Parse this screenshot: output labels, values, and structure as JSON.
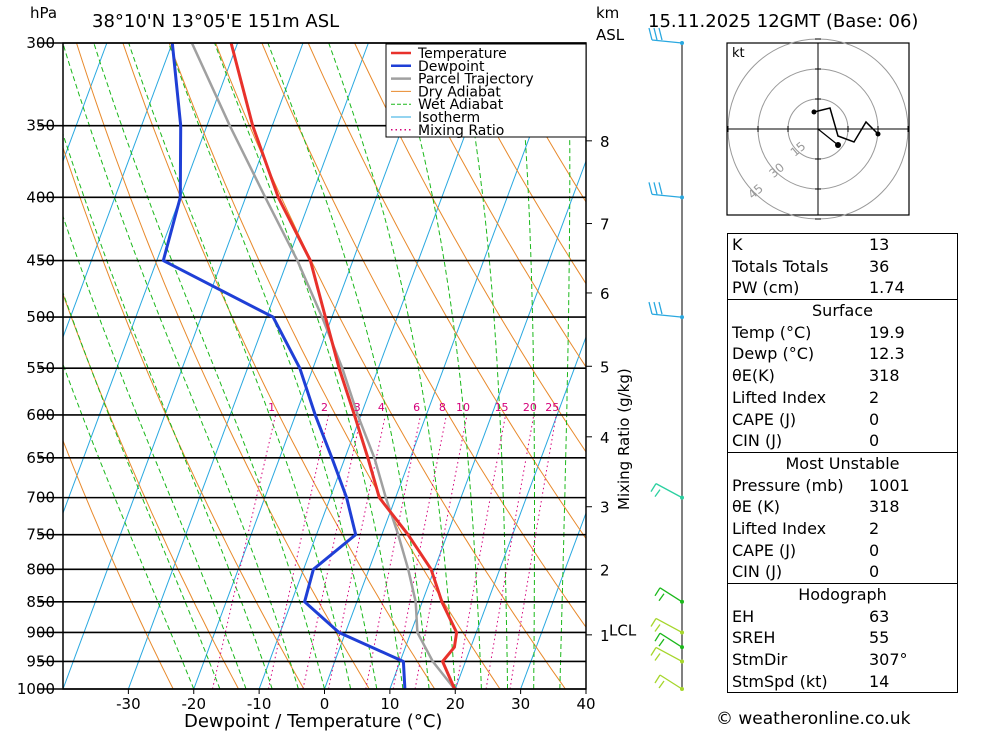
{
  "title": {
    "location": "38°10'N 13°05'E 151m ASL",
    "datetime": "15.11.2025 12GMT (Base: 06)"
  },
  "colors": {
    "temperature": "#e8312b",
    "dewpoint": "#1f3fd6",
    "parcel": "#a0a0a0",
    "dry_adiabat": "#e8892b",
    "wet_adiabat": "#1bb81b",
    "isotherm": "#29a8e0",
    "mixing_ratio": "#d4007a"
  },
  "chart_data": {
    "type": "line",
    "title": "38°10'N 13°05'E 151m ASL",
    "xlabel": "Dewpoint / Temperature (°C)",
    "ylabel": "hPa",
    "xlim": [
      -40,
      40
    ],
    "pressure_range": [
      300,
      1000
    ],
    "pressure_ticks": [
      300,
      350,
      400,
      450,
      500,
      550,
      600,
      650,
      700,
      750,
      800,
      850,
      900,
      950,
      1000
    ],
    "temp_ticks": [
      -30,
      -20,
      -10,
      0,
      10,
      20,
      30,
      40
    ],
    "km_axis": {
      "label": "km",
      "sublabel": "ASL",
      "ticks": [
        {
          "label": "8",
          "p": 360
        },
        {
          "label": "7",
          "p": 420
        },
        {
          "label": "6",
          "p": 478
        },
        {
          "label": "5",
          "p": 548
        },
        {
          "label": "4",
          "p": 625
        },
        {
          "label": "3",
          "p": 712
        },
        {
          "label": "2",
          "p": 800
        },
        {
          "label": "1",
          "p": 904
        }
      ],
      "lcl": {
        "label": "LCL",
        "p": 900
      }
    },
    "mixing_ratio_label": "Mixing Ratio (g/kg)",
    "mixing_ratio_lines": [
      1,
      2,
      3,
      4,
      6,
      8,
      10,
      15,
      20,
      25
    ],
    "legend": [
      "Temperature",
      "Dewpoint",
      "Parcel Trajectory",
      "Dry Adiabat",
      "Wet Adiabat",
      "Isotherm",
      "Mixing Ratio"
    ],
    "series": [
      {
        "name": "Temperature",
        "points": [
          [
            1000,
            19.9
          ],
          [
            950,
            16.5
          ],
          [
            925,
            17.5
          ],
          [
            900,
            17.0
          ],
          [
            850,
            13.0
          ],
          [
            800,
            9.5
          ],
          [
            750,
            4.0
          ],
          [
            700,
            -2.5
          ],
          [
            650,
            -6.5
          ],
          [
            600,
            -11.0
          ],
          [
            550,
            -16.0
          ],
          [
            500,
            -21.0
          ],
          [
            450,
            -26.5
          ],
          [
            400,
            -35.0
          ],
          [
            350,
            -43.0
          ],
          [
            300,
            -51.0
          ]
        ]
      },
      {
        "name": "Dewpoint",
        "points": [
          [
            1000,
            12.3
          ],
          [
            950,
            10.5
          ],
          [
            900,
            -1.0
          ],
          [
            850,
            -8.0
          ],
          [
            800,
            -8.5
          ],
          [
            750,
            -4.0
          ],
          [
            700,
            -7.5
          ],
          [
            650,
            -12.0
          ],
          [
            600,
            -17.0
          ],
          [
            550,
            -22.0
          ],
          [
            500,
            -29.0
          ],
          [
            450,
            -49.0
          ],
          [
            400,
            -50.0
          ],
          [
            350,
            -54.0
          ],
          [
            300,
            -60.0
          ]
        ]
      },
      {
        "name": "Parcel Trajectory",
        "points": [
          [
            1000,
            19.9
          ],
          [
            950,
            15.0
          ],
          [
            900,
            11.0
          ],
          [
            850,
            9.0
          ],
          [
            800,
            6.0
          ],
          [
            750,
            2.5
          ],
          [
            700,
            -1.5
          ],
          [
            650,
            -5.5
          ],
          [
            600,
            -10.5
          ],
          [
            550,
            -15.5
          ],
          [
            500,
            -21.5
          ],
          [
            450,
            -28.5
          ],
          [
            400,
            -37.0
          ],
          [
            350,
            -46.5
          ],
          [
            300,
            -57.0
          ]
        ]
      }
    ]
  },
  "hodograph": {
    "unit_label": "kt",
    "ring_labels": [
      "15",
      "30",
      "45"
    ]
  },
  "indices": {
    "top": [
      {
        "label": "K",
        "value": "13"
      },
      {
        "label": "Totals Totals",
        "value": "36"
      },
      {
        "label": "PW (cm)",
        "value": "1.74"
      }
    ],
    "surface": {
      "header": "Surface",
      "rows": [
        {
          "label": "Temp (°C)",
          "value": "19.9"
        },
        {
          "label": "Dewp (°C)",
          "value": "12.3"
        },
        {
          "label": "θE(K)",
          "value": "318"
        },
        {
          "label": "Lifted Index",
          "value": "2"
        },
        {
          "label": "CAPE (J)",
          "value": "0"
        },
        {
          "label": "CIN (J)",
          "value": "0"
        }
      ]
    },
    "most_unstable": {
      "header": "Most Unstable",
      "rows": [
        {
          "label": "Pressure (mb)",
          "value": "1001"
        },
        {
          "label": "θE (K)",
          "value": "318"
        },
        {
          "label": "Lifted Index",
          "value": "2"
        },
        {
          "label": "CAPE (J)",
          "value": "0"
        },
        {
          "label": "CIN (J)",
          "value": "0"
        }
      ]
    },
    "hodograph_block": {
      "header": "Hodograph",
      "rows": [
        {
          "label": "EH",
          "value": "63"
        },
        {
          "label": "SREH",
          "value": "55"
        },
        {
          "label": "StmDir",
          "value": "307°"
        },
        {
          "label": "StmSpd (kt)",
          "value": "14"
        }
      ]
    }
  },
  "copyright": "© weatheronline.co.uk"
}
